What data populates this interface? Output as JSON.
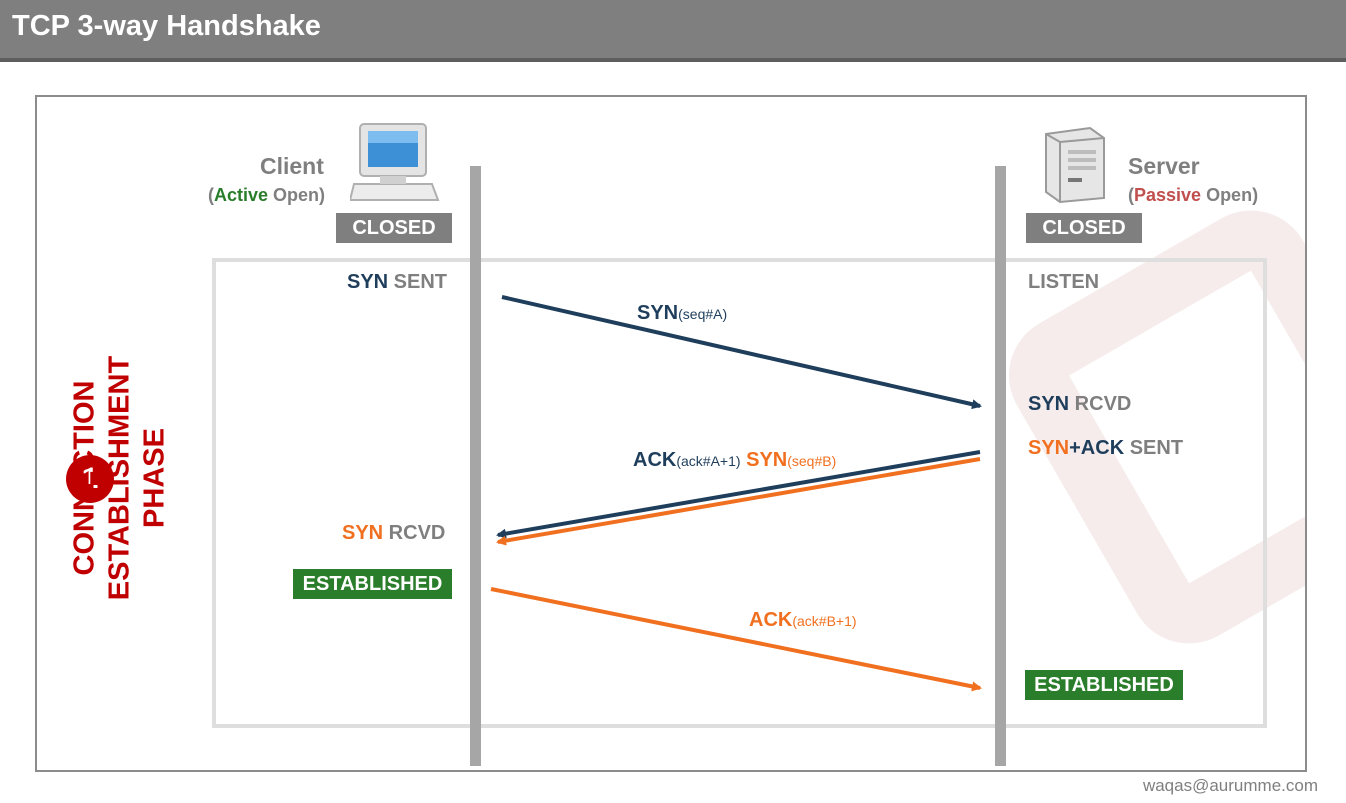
{
  "header": {
    "title": "TCP 3-way Handshake"
  },
  "client": {
    "name": "Client",
    "open_prefix": "(",
    "open_kind": "Active",
    "open_suffix": " Open)",
    "initial_state": "CLOSED",
    "state1_a": "SYN",
    "state1_b": " SENT",
    "state2_a": "SYN",
    "state2_b": " RCVD",
    "final_state": "ESTABLISHED",
    "icon": "computer-icon"
  },
  "server": {
    "name": "Server",
    "open_prefix": "(",
    "open_kind": "Passive",
    "open_suffix": " Open)",
    "initial_state": "CLOSED",
    "state1": "LISTEN",
    "state2_a": "SYN",
    "state2_b": " RCVD",
    "state3_a": "SYN",
    "state3_b": "+ACK",
    "state3_c": " SENT",
    "final_state": "ESTABLISHED",
    "icon": "server-icon"
  },
  "messages": {
    "msg1_main": "SYN",
    "msg1_sub": "(seq#A)",
    "msg2_main1": "ACK",
    "msg2_sub1": "(ack#A+1)",
    "msg2_main2": " SYN",
    "msg2_sub2": "(seq#B)",
    "msg3_main": "ACK",
    "msg3_sub": "(ack#B+1)"
  },
  "phase": {
    "number": "1",
    "line1": "CONNECTION ESTABLISHMENT",
    "line2": "PHASE"
  },
  "footer": {
    "credit": "waqas@aurumme.com"
  },
  "colors": {
    "navy": "#1f3e5c",
    "orange": "#f07020",
    "green": "#2a7d2a",
    "red": "#c00000",
    "gray": "#7f7f7f"
  }
}
